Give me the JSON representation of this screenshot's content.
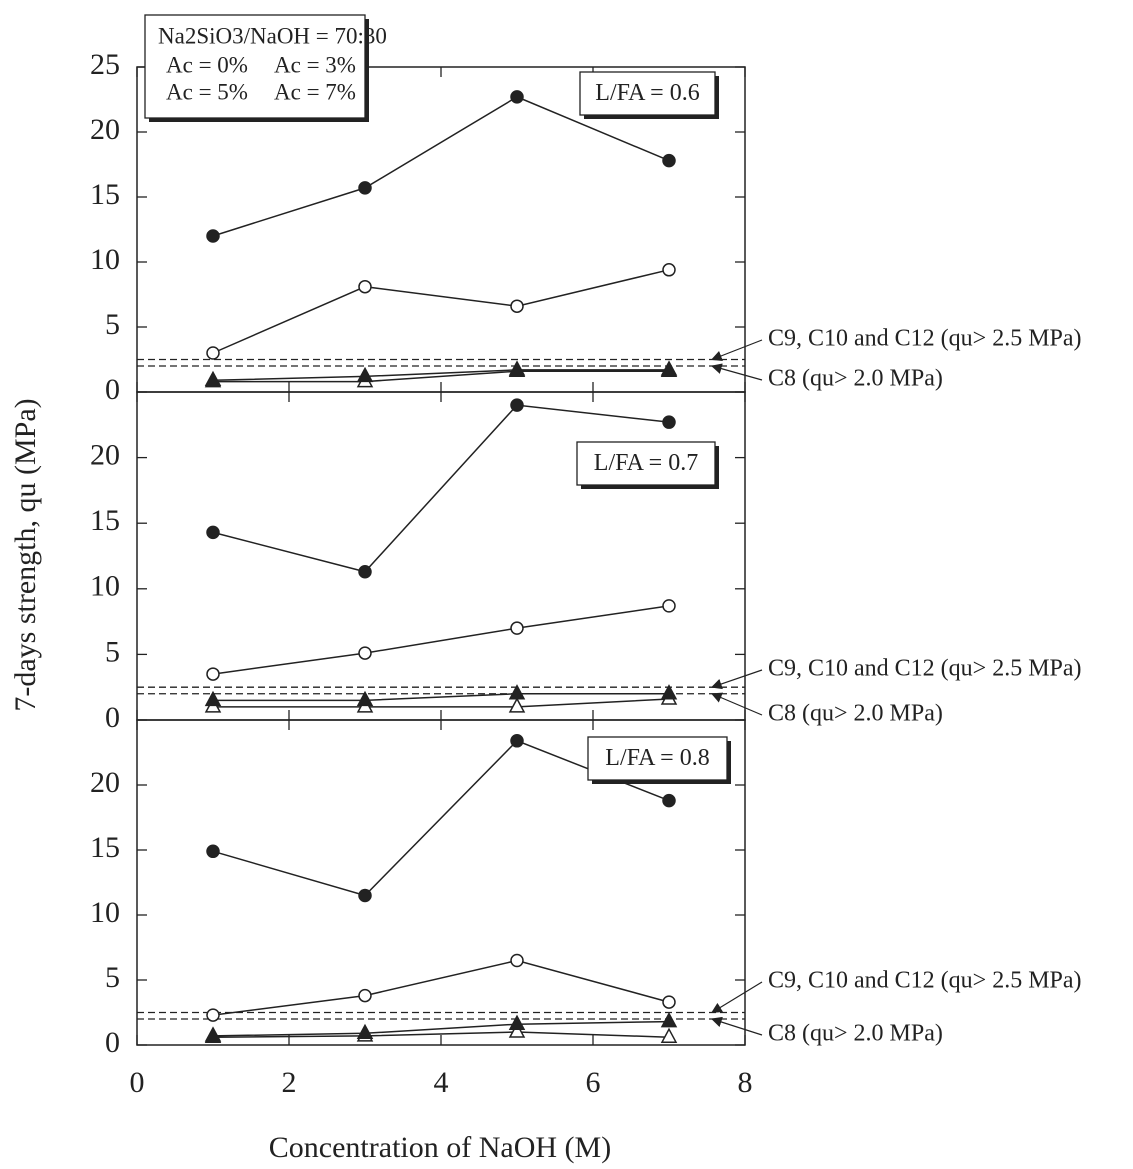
{
  "chart_data": [
    {
      "type": "line",
      "panel_label": "L/FA = 0.6",
      "legend_title": "Na2SiO3/NaOH = 70:30",
      "x": [
        1,
        3,
        5,
        7
      ],
      "xlim": [
        0,
        8
      ],
      "xticks": [
        0,
        2,
        4,
        6,
        8
      ],
      "ylim": [
        0,
        25
      ],
      "yticks": [
        0,
        5,
        10,
        15,
        20,
        25
      ],
      "series": [
        {
          "name": "Ac = 0%",
          "marker": "triangle",
          "filled": false,
          "color": "#222222",
          "values": [
            0.8,
            0.8,
            1.6,
            1.6
          ]
        },
        {
          "name": "Ac = 3%",
          "marker": "triangle",
          "filled": true,
          "color": "#222222",
          "values": [
            0.9,
            1.2,
            1.7,
            1.7
          ]
        },
        {
          "name": "Ac = 5%",
          "marker": "circle",
          "filled": false,
          "color": "#222222",
          "values": [
            3.0,
            8.1,
            6.6,
            9.4
          ]
        },
        {
          "name": "Ac = 7%",
          "marker": "circle",
          "filled": true,
          "color": "#222222",
          "values": [
            12.0,
            15.7,
            22.7,
            17.8
          ]
        }
      ],
      "reference_lines": [
        {
          "value": 2.5,
          "label": "C9, C10 and C12 (qu> 2.5 MPa)"
        },
        {
          "value": 2.0,
          "label": "C8 (qu> 2.0 MPa)"
        }
      ]
    },
    {
      "type": "line",
      "panel_label": "L/FA = 0.7",
      "x": [
        1,
        3,
        5,
        7
      ],
      "xlim": [
        0,
        8
      ],
      "xticks": [
        0,
        2,
        4,
        6,
        8
      ],
      "ylim": [
        0,
        25
      ],
      "yticks": [
        0,
        5,
        10,
        15,
        20
      ],
      "series": [
        {
          "marker": "triangle",
          "filled": false,
          "color": "#222222",
          "values": [
            1.0,
            1.0,
            1.0,
            1.6
          ]
        },
        {
          "marker": "triangle",
          "filled": true,
          "color": "#222222",
          "values": [
            1.5,
            1.5,
            2.0,
            2.0
          ]
        },
        {
          "marker": "circle",
          "filled": false,
          "color": "#222222",
          "values": [
            3.5,
            5.1,
            7.0,
            8.7
          ]
        },
        {
          "marker": "circle",
          "filled": true,
          "color": "#222222",
          "values": [
            14.3,
            11.3,
            24.0,
            22.7
          ]
        }
      ],
      "reference_lines": [
        {
          "value": 2.5,
          "label": "C9, C10 and C12 (qu> 2.5 MPa)"
        },
        {
          "value": 2.0,
          "label": "C8 (qu> 2.0 MPa)"
        }
      ]
    },
    {
      "type": "line",
      "panel_label": "L/FA = 0.8",
      "x_label": "Concentration of NaOH (M)",
      "y_label": "7-days strength, qu (MPa)",
      "x": [
        1,
        3,
        5,
        7
      ],
      "xlim": [
        0,
        8
      ],
      "xticks": [
        0,
        2,
        4,
        6,
        8
      ],
      "ylim": [
        0,
        25
      ],
      "yticks": [
        0,
        5,
        10,
        15,
        20
      ],
      "series": [
        {
          "marker": "triangle",
          "filled": false,
          "color": "#222222",
          "values": [
            0.6,
            0.7,
            1.0,
            0.6
          ]
        },
        {
          "marker": "triangle",
          "filled": true,
          "color": "#222222",
          "values": [
            0.7,
            0.9,
            1.6,
            1.8
          ]
        },
        {
          "marker": "circle",
          "filled": false,
          "color": "#222222",
          "values": [
            2.3,
            3.8,
            6.5,
            3.3
          ]
        },
        {
          "marker": "circle",
          "filled": true,
          "color": "#222222",
          "values": [
            14.9,
            11.5,
            23.4,
            18.8
          ]
        }
      ],
      "reference_lines": [
        {
          "value": 2.5,
          "label": "C9, C10 and C12 (qu> 2.5 MPa)"
        },
        {
          "value": 2.0,
          "label": "C8 (qu> 2.0 MPa)"
        }
      ]
    }
  ]
}
